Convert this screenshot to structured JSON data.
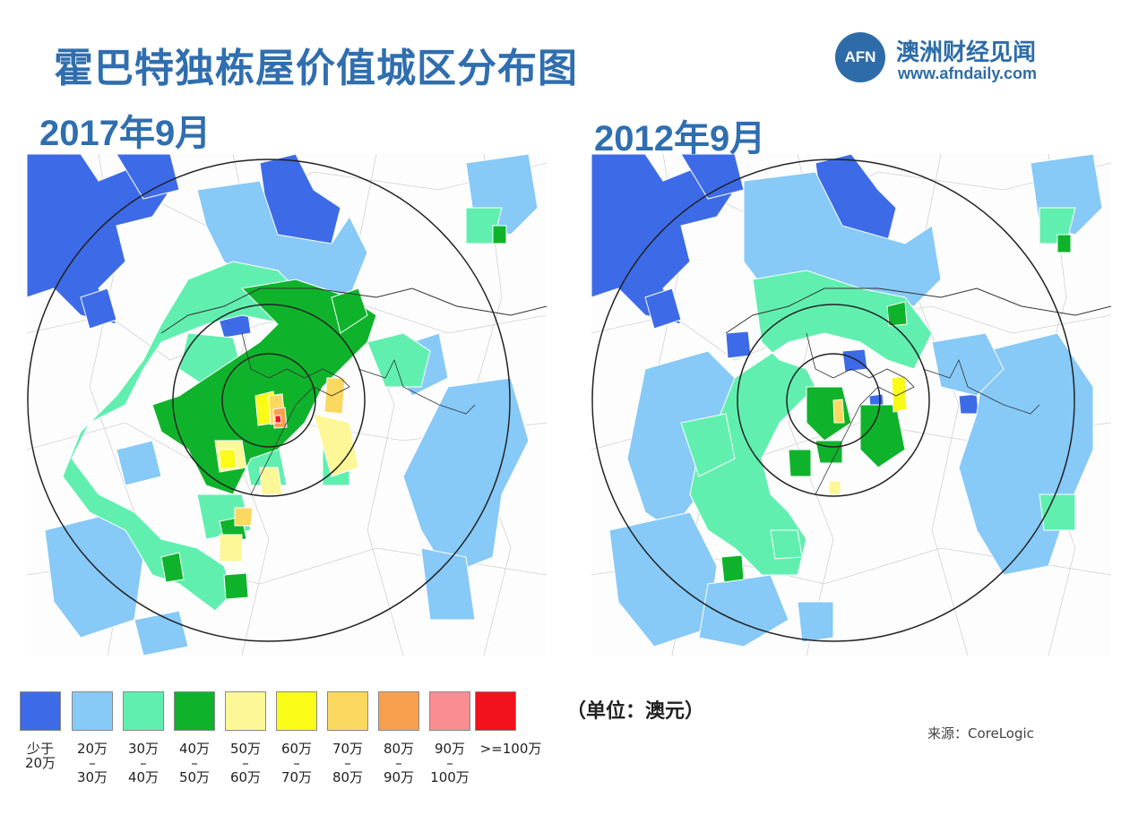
{
  "title": "霍巴特独栋屋价值城区分布图",
  "brand": {
    "badge": "AFN",
    "name": "澳洲财经见闻",
    "url": "www.afndaily.com",
    "color": "#2d6ca8"
  },
  "maps": [
    {
      "date": "2017年9月"
    },
    {
      "date": "2012年9月"
    }
  ],
  "legend": [
    {
      "color": "#3d6be8",
      "label": "少于\n20万"
    },
    {
      "color": "#87c9f7",
      "label": "20万\n–\n30万"
    },
    {
      "color": "#61efaf",
      "label": "30万\n–\n40万"
    },
    {
      "color": "#0fb32b",
      "label": "40万\n–\n50万"
    },
    {
      "color": "#fdf797",
      "label": "50万\n–\n60万"
    },
    {
      "color": "#fbfb18",
      "label": "60万\n–\n70万"
    },
    {
      "color": "#fbd860",
      "label": "70万\n–\n80万"
    },
    {
      "color": "#f8a04e",
      "label": "80万\n–\n90万"
    },
    {
      "color": "#f98d92",
      "label": "90万\n–\n100万"
    },
    {
      "color": "#f2111c",
      "label": ">=100万"
    }
  ],
  "unit": "（单位：澳元）",
  "source": "来源：CoreLogic"
}
